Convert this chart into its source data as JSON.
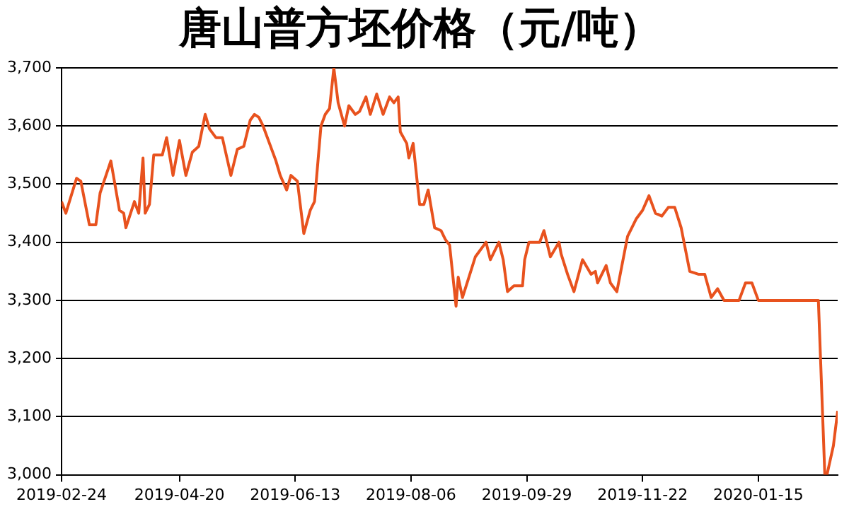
{
  "chart_data": {
    "type": "line",
    "title": "唐山普方坯价格（元/吨）",
    "x": [
      "2019-02-24",
      "2019-02-26",
      "2019-03-03",
      "2019-03-05",
      "2019-03-09",
      "2019-03-12",
      "2019-03-14",
      "2019-03-19",
      "2019-03-23",
      "2019-03-25",
      "2019-03-26",
      "2019-03-30",
      "2019-04-01",
      "2019-04-03",
      "2019-04-04",
      "2019-04-06",
      "2019-04-08",
      "2019-04-12",
      "2019-04-14",
      "2019-04-17",
      "2019-04-20",
      "2019-04-23",
      "2019-04-26",
      "2019-04-29",
      "2019-05-02",
      "2019-05-04",
      "2019-05-07",
      "2019-05-10",
      "2019-05-14",
      "2019-05-17",
      "2019-05-20",
      "2019-05-23",
      "2019-05-25",
      "2019-05-27",
      "2019-05-29",
      "2019-06-01",
      "2019-06-04",
      "2019-06-06",
      "2019-06-09",
      "2019-06-11",
      "2019-06-14",
      "2019-06-17",
      "2019-06-20",
      "2019-06-22",
      "2019-06-25",
      "2019-06-27",
      "2019-06-29",
      "2019-07-01",
      "2019-07-03",
      "2019-07-06",
      "2019-07-08",
      "2019-07-11",
      "2019-07-13",
      "2019-07-16",
      "2019-07-18",
      "2019-07-21",
      "2019-07-24",
      "2019-07-27",
      "2019-07-29",
      "2019-07-31",
      "2019-08-01",
      "2019-08-04",
      "2019-08-05",
      "2019-08-07",
      "2019-08-10",
      "2019-08-12",
      "2019-08-14",
      "2019-08-17",
      "2019-08-20",
      "2019-08-22",
      "2019-08-24",
      "2019-08-27",
      "2019-08-28",
      "2019-08-30",
      "2019-09-02",
      "2019-09-05",
      "2019-09-07",
      "2019-09-10",
      "2019-09-12",
      "2019-09-16",
      "2019-09-18",
      "2019-09-20",
      "2019-09-23",
      "2019-09-27",
      "2019-09-28",
      "2019-09-30",
      "2019-10-05",
      "2019-10-07",
      "2019-10-10",
      "2019-10-14",
      "2019-10-15",
      "2019-10-18",
      "2019-10-21",
      "2019-10-25",
      "2019-10-29",
      "2019-10-31",
      "2019-11-01",
      "2019-11-05",
      "2019-11-07",
      "2019-11-10",
      "2019-11-15",
      "2019-11-19",
      "2019-11-22",
      "2019-11-25",
      "2019-11-28",
      "2019-12-01",
      "2019-12-04",
      "2019-12-07",
      "2019-12-10",
      "2019-12-14",
      "2019-12-18",
      "2019-12-21",
      "2019-12-24",
      "2019-12-27",
      "2019-12-30",
      "2020-01-06",
      "2020-01-09",
      "2020-01-12",
      "2020-01-15",
      "2020-02-12",
      "2020-02-15",
      "2020-02-16",
      "2020-02-19",
      "2020-02-21"
    ],
    "series": [
      {
        "color": "#e8521e",
        "values": [
          3470,
          3450,
          3510,
          3505,
          3430,
          3430,
          3485,
          3540,
          3455,
          3450,
          3425,
          3470,
          3450,
          3545,
          3450,
          3465,
          3550,
          3550,
          3580,
          3515,
          3575,
          3515,
          3555,
          3565,
          3620,
          3595,
          3580,
          3580,
          3515,
          3560,
          3565,
          3610,
          3620,
          3615,
          3600,
          3570,
          3540,
          3515,
          3490,
          3515,
          3505,
          3415,
          3455,
          3470,
          3600,
          3620,
          3630,
          3700,
          3640,
          3600,
          3635,
          3620,
          3625,
          3650,
          3620,
          3655,
          3620,
          3650,
          3640,
          3650,
          3590,
          3570,
          3545,
          3570,
          3465,
          3465,
          3490,
          3425,
          3420,
          3405,
          3395,
          3290,
          3340,
          3305,
          3340,
          3375,
          3385,
          3400,
          3370,
          3400,
          3370,
          3315,
          3325,
          3325,
          3370,
          3400,
          3400,
          3420,
          3375,
          3400,
          3380,
          3345,
          3315,
          3370,
          3345,
          3350,
          3330,
          3360,
          3330,
          3315,
          3410,
          3440,
          3455,
          3480,
          3450,
          3445,
          3460,
          3460,
          3425,
          3350,
          3345,
          3345,
          3305,
          3320,
          3300,
          3300,
          3330,
          3330,
          3300,
          3300,
          3000,
          3000,
          3050,
          3110
        ]
      }
    ],
    "xlim": [
      "2019-02-24",
      "2020-02-21"
    ],
    "xticks": [
      "2019-02-24",
      "2019-04-20",
      "2019-06-13",
      "2019-08-06",
      "2019-09-29",
      "2019-11-22",
      "2020-01-15"
    ],
    "ylim": [
      3000,
      3700
    ],
    "yticks": [
      {
        "value": 3000,
        "label": "3,000"
      },
      {
        "value": 3100,
        "label": "3,100"
      },
      {
        "value": 3200,
        "label": "3,200"
      },
      {
        "value": 3300,
        "label": "3,300"
      },
      {
        "value": 3400,
        "label": "3,400"
      },
      {
        "value": 3500,
        "label": "3,500"
      },
      {
        "value": 3600,
        "label": "3,600"
      },
      {
        "value": 3700,
        "label": "3,700"
      }
    ],
    "grid": "y",
    "legend": false,
    "marker": "none",
    "line_style": "solid"
  }
}
